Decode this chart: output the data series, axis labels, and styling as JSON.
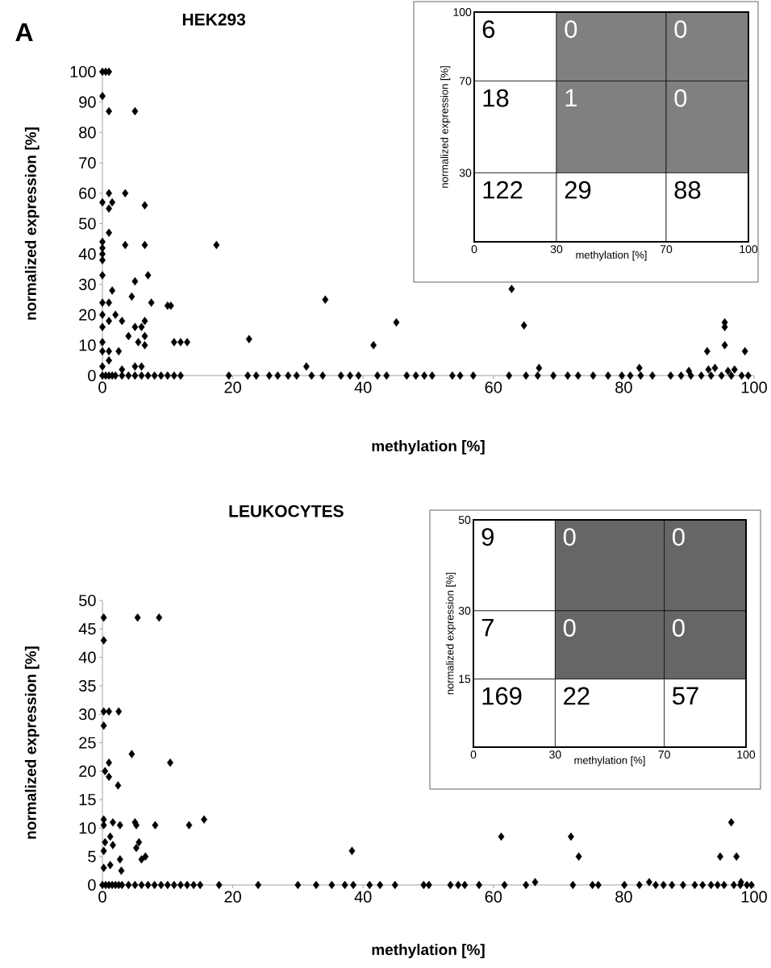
{
  "chart_data": [
    {
      "type": "scatter",
      "title": "HEK293",
      "xlabel": "methylation [%]",
      "ylabel": "normalized expression [%]",
      "annotations": [
        "A"
      ],
      "marker": "diamond",
      "xlim": [
        0,
        100
      ],
      "ylim": [
        0,
        100
      ],
      "xticks": [
        0,
        20,
        40,
        60,
        80,
        100
      ],
      "yticks": [
        0,
        10,
        20,
        30,
        40,
        50,
        60,
        70,
        80,
        90,
        100
      ],
      "series": [
        {
          "color": "#000000",
          "x": [
            0,
            0.5,
            1,
            0,
            1,
            5,
            1,
            3.5,
            0,
            1.5,
            1,
            6.5,
            1,
            0,
            0,
            0,
            0,
            3.5,
            6.5,
            17.5,
            0,
            7,
            5,
            1.5,
            4.5,
            0,
            1,
            7.5,
            10,
            10.5,
            0,
            2,
            1,
            3,
            6.5,
            0,
            5,
            6,
            4,
            6.5,
            0,
            5.5,
            11,
            12,
            13,
            6.5,
            0,
            1,
            2.5,
            1,
            0,
            5,
            6,
            3,
            22.5,
            34.2,
            45.1,
            41.6,
            31.3,
            62.8,
            64.7,
            95.5,
            95.5,
            95.5,
            92.8,
            98.6,
            67,
            82.4,
            90,
            93,
            94,
            96,
            97,
            0,
            0.5,
            1,
            1.5,
            2,
            3,
            4,
            5,
            6,
            7,
            8,
            9,
            10,
            11,
            12,
            19.4,
            22.3,
            23.6,
            25.6,
            26.9,
            28.5,
            29.8,
            32.1,
            33.8,
            36.6,
            38,
            39.3,
            42.2,
            43.6,
            46.7,
            48.1,
            49.4,
            50.6,
            53.7,
            54.9,
            56.9,
            62.4,
            65,
            66.8,
            69.2,
            71.4,
            73,
            75.3,
            77.6,
            79.7,
            81,
            82.6,
            84.4,
            87.2,
            88.8,
            90.3,
            91.9,
            93.4,
            95,
            96.5,
            98.1,
            99.1
          ],
          "values": [
            100,
            100,
            100,
            92,
            87,
            87,
            60,
            60,
            57,
            57,
            55,
            56,
            47,
            44,
            42,
            40,
            38,
            43,
            43,
            43,
            33,
            33,
            31,
            28,
            26,
            24,
            24,
            24,
            23,
            23,
            20,
            20,
            18,
            18,
            18,
            16,
            16,
            16,
            13,
            13,
            11,
            11,
            11,
            11,
            11,
            10,
            8,
            8,
            8,
            5,
            3,
            3,
            3,
            2,
            12,
            25,
            17.5,
            10,
            3,
            28.5,
            16.5,
            17.5,
            16,
            10,
            8,
            8,
            2.5,
            2.5,
            1.5,
            2,
            2.5,
            1.5,
            2,
            0,
            0,
            0,
            0,
            0,
            0,
            0,
            0,
            0,
            0,
            0,
            0,
            0,
            0,
            0,
            0,
            0,
            0,
            0,
            0,
            0,
            0,
            0,
            0,
            0,
            0,
            0,
            0,
            0,
            0,
            0,
            0,
            0,
            0,
            0,
            0,
            0,
            0,
            0,
            0,
            0,
            0,
            0,
            0,
            0,
            0,
            0,
            0,
            0,
            0,
            0,
            0,
            0,
            0,
            0,
            0,
            0
          ]
        }
      ]
    },
    {
      "type": "heatmap",
      "xlabel": "methylation [%]",
      "ylabel": "normalized expression [%]",
      "xlim": [
        0,
        100
      ],
      "ylim": [
        0,
        100
      ],
      "xticks": [
        0,
        30,
        70,
        100
      ],
      "yticks": [
        {
          "value": 0,
          "label": null
        },
        30,
        70,
        100
      ],
      "data_labels": true,
      "cells": [
        [
          6,
          0,
          0
        ],
        [
          18,
          1,
          0
        ],
        [
          122,
          29,
          88
        ]
      ],
      "colors": [
        [
          "#ffffff",
          "#808080",
          "#808080"
        ],
        [
          "#ffffff",
          "#808080",
          "#808080"
        ],
        [
          "#ffffff",
          "#ffffff",
          "#ffffff"
        ]
      ]
    },
    {
      "type": "scatter",
      "title": "LEUKOCYTES",
      "xlabel": "methylation [%]",
      "ylabel": "normalized expression [%]",
      "marker": "diamond",
      "xlim": [
        0,
        100
      ],
      "ylim": [
        0,
        50
      ],
      "xticks": [
        0,
        20,
        40,
        60,
        80,
        100
      ],
      "yticks": [
        0,
        5,
        10,
        15,
        20,
        25,
        30,
        35,
        40,
        45,
        50
      ],
      "series": [
        {
          "color": "#000000",
          "x": [
            0.2,
            5.4,
            8.7,
            0.2,
            0.2,
            1,
            2.5,
            0.2,
            4.5,
            10.4,
            1,
            0.4,
            1,
            2.4,
            0.2,
            1.6,
            2.7,
            5,
            5.2,
            8.1,
            13.3,
            15.6,
            0.2,
            1.2,
            0.4,
            1.6,
            5.6,
            5.2,
            6,
            6.6,
            2.7,
            0.2,
            1.2,
            2.9,
            0.2,
            38.3,
            61.2,
            71.9,
            73.1,
            96.5,
            94.8,
            97.3,
            66.4,
            83.9,
            98,
            0,
            0.5,
            1,
            1.5,
            2,
            2.5,
            3,
            4,
            5,
            6,
            7,
            8,
            9,
            10,
            11,
            12,
            13,
            14,
            15,
            17.9,
            23.9,
            30,
            32.8,
            35.2,
            37.2,
            38.5,
            41,
            42.6,
            44.9,
            49.3,
            50.1,
            53.4,
            54.6,
            55.6,
            57.8,
            61.7,
            65,
            72.2,
            75.2,
            76.1,
            80.1,
            82.4,
            84.9,
            86.1,
            87.4,
            89.1,
            90.9,
            92.1,
            93.4,
            94.4,
            95.4,
            96.9,
            97.9,
            98.9,
            99.6
          ],
          "values": [
            47,
            47,
            47,
            43,
            30.5,
            30.5,
            30.5,
            28,
            23,
            21.5,
            21.5,
            20,
            19,
            17.5,
            11.5,
            11,
            10.5,
            11,
            10.5,
            10.5,
            10.5,
            11.5,
            10.5,
            8.5,
            7.5,
            7,
            7.5,
            6.5,
            4.5,
            5,
            4.5,
            3,
            3.5,
            2.5,
            6,
            6,
            8.5,
            8.5,
            5,
            11,
            5,
            5,
            0.5,
            0.5,
            0.5,
            0,
            0,
            0,
            0,
            0,
            0,
            0,
            0,
            0,
            0,
            0,
            0,
            0,
            0,
            0,
            0,
            0,
            0,
            0,
            0,
            0,
            0,
            0,
            0,
            0,
            0,
            0,
            0,
            0,
            0,
            0,
            0,
            0,
            0,
            0,
            0,
            0,
            0,
            0,
            0,
            0,
            0,
            0,
            0,
            0,
            0,
            0,
            0,
            0,
            0,
            0,
            0,
            0,
            0,
            0
          ]
        }
      ]
    },
    {
      "type": "heatmap",
      "xlabel": "methylation [%]",
      "ylabel": "normalized expression [%]",
      "xlim": [
        0,
        100
      ],
      "ylim": [
        0,
        50
      ],
      "xticks": [
        0,
        30,
        70,
        100
      ],
      "yticks": [
        {
          "value": 0,
          "label": null
        },
        15,
        30,
        50
      ],
      "data_labels": true,
      "cells": [
        [
          9,
          0,
          0
        ],
        [
          7,
          0,
          0
        ],
        [
          169,
          22,
          57
        ]
      ],
      "colors": [
        [
          "#ffffff",
          "#666666",
          "#666666"
        ],
        [
          "#ffffff",
          "#666666",
          "#666666"
        ],
        [
          "#ffffff",
          "#ffffff",
          "#ffffff"
        ]
      ]
    }
  ]
}
